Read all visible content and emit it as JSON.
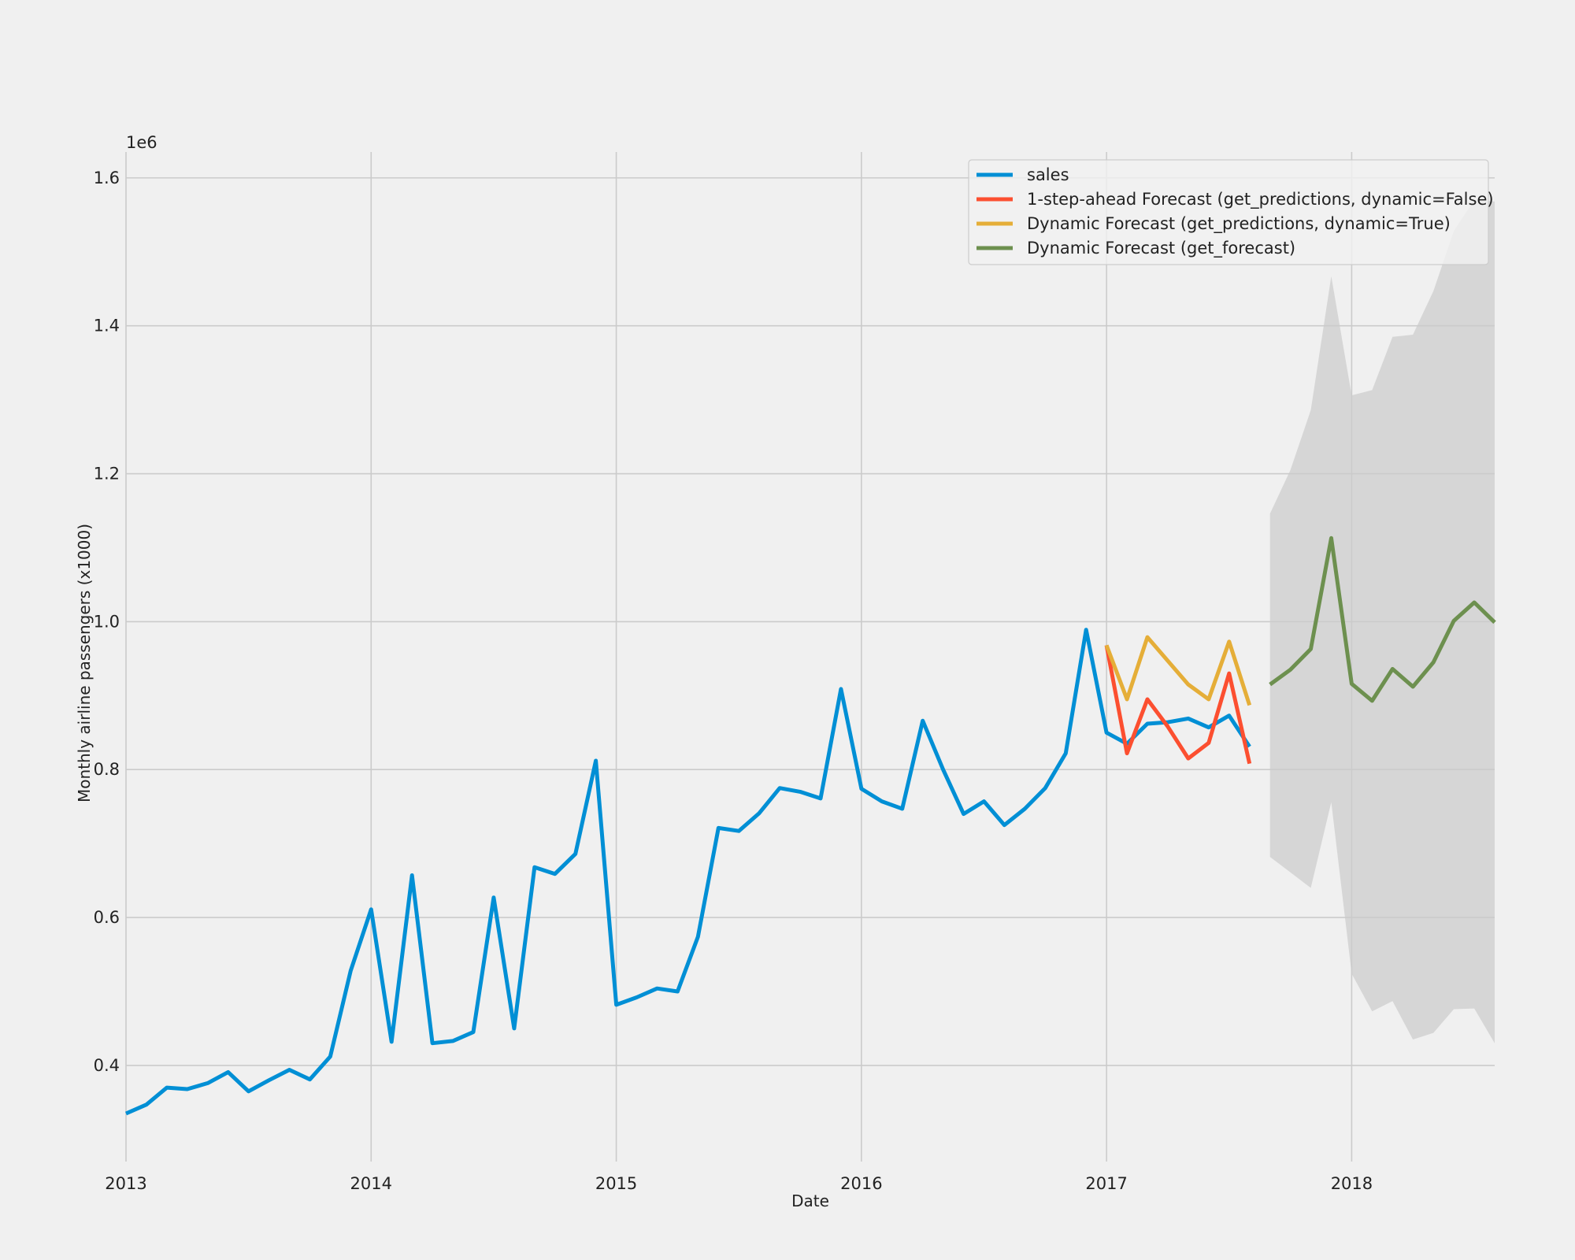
{
  "chart_data": {
    "type": "line",
    "title": "",
    "xlabel": "Date",
    "ylabel": "Monthly airline passengers (x1000)",
    "y_offset_text": "1e6",
    "xlim": [
      "2013-01",
      "2018-08"
    ],
    "ylim": [
      270000,
      1635000
    ],
    "x_ticks": [
      "2013",
      "2014",
      "2015",
      "2016",
      "2017",
      "2018"
    ],
    "y_ticks": [
      "0.4",
      "0.6",
      "0.8",
      "1.0",
      "1.2",
      "1.4",
      "1.6"
    ],
    "grid": true,
    "legend_position": "top-right",
    "colors": {
      "background": "#f0f0f0",
      "grid": "#cbcbcb",
      "band": "#d6d6d6"
    },
    "series": [
      {
        "name": "sales",
        "color": "#008fd5",
        "x": [
          "2013-01",
          "2013-02",
          "2013-03",
          "2013-04",
          "2013-05",
          "2013-06",
          "2013-07",
          "2013-08",
          "2013-09",
          "2013-10",
          "2013-11",
          "2013-12",
          "2014-01",
          "2014-02",
          "2014-03",
          "2014-04",
          "2014-05",
          "2014-06",
          "2014-07",
          "2014-08",
          "2014-09",
          "2014-10",
          "2014-11",
          "2014-12",
          "2015-01",
          "2015-02",
          "2015-03",
          "2015-04",
          "2015-05",
          "2015-06",
          "2015-07",
          "2015-08",
          "2015-09",
          "2015-10",
          "2015-11",
          "2015-12",
          "2016-01",
          "2016-02",
          "2016-03",
          "2016-04",
          "2016-05",
          "2016-06",
          "2016-07",
          "2016-08",
          "2016-09",
          "2016-10",
          "2016-11",
          "2016-12",
          "2017-01",
          "2017-02",
          "2017-03",
          "2017-04",
          "2017-05",
          "2017-06",
          "2017-07",
          "2017-08"
        ],
        "y": [
          335000,
          347000,
          370000,
          368000,
          376000,
          391000,
          365000,
          380000,
          394000,
          381000,
          412000,
          528000,
          611000,
          432000,
          657000,
          430000,
          433000,
          445000,
          627000,
          450000,
          668000,
          659000,
          686000,
          812000,
          482000,
          492000,
          504000,
          500000,
          574000,
          721000,
          717000,
          741000,
          775000,
          770000,
          761000,
          909000,
          774000,
          757000,
          747000,
          866000,
          800000,
          740000,
          757000,
          725000,
          747000,
          775000,
          822000,
          989000,
          850000,
          835000,
          862000,
          864000,
          869000,
          857000,
          873000,
          831000
        ]
      },
      {
        "name": "1-step-ahead Forecast (get_predictions, dynamic=False)",
        "color": "#fc4f30",
        "x": [
          "2017-01",
          "2017-02",
          "2017-03",
          "2017-04",
          "2017-05",
          "2017-06",
          "2017-07",
          "2017-08"
        ],
        "y": [
          968000,
          822000,
          895000,
          858000,
          815000,
          836000,
          930000,
          808000
        ]
      },
      {
        "name": "Dynamic Forecast (get_predictions, dynamic=True)",
        "color": "#e5ae38",
        "x": [
          "2017-01",
          "2017-02",
          "2017-03",
          "2017-04",
          "2017-05",
          "2017-06",
          "2017-07",
          "2017-08"
        ],
        "y": [
          968000,
          895000,
          979000,
          947000,
          915000,
          895000,
          973000,
          887000
        ]
      },
      {
        "name": "Dynamic Forecast (get_forecast)",
        "color": "#6d904f",
        "x": [
          "2017-09",
          "2017-10",
          "2017-11",
          "2017-12",
          "2018-01",
          "2018-02",
          "2018-03",
          "2018-04",
          "2018-05",
          "2018-06",
          "2018-07",
          "2018-08"
        ],
        "y": [
          915000,
          935000,
          963000,
          1113000,
          916000,
          893000,
          936000,
          912000,
          945000,
          1001000,
          1026000,
          999000
        ]
      }
    ],
    "confidence_band": {
      "x": [
        "2017-09",
        "2017-10",
        "2017-11",
        "2017-12",
        "2018-01",
        "2018-02",
        "2018-03",
        "2018-04",
        "2018-05",
        "2018-06",
        "2018-07",
        "2018-08"
      ],
      "lower": [
        682000,
        661000,
        640000,
        756000,
        524000,
        473000,
        487000,
        435000,
        444000,
        476000,
        477000,
        430000
      ],
      "upper": [
        1146000,
        1205000,
        1286000,
        1467000,
        1306000,
        1313000,
        1385000,
        1388000,
        1447000,
        1528000,
        1570000,
        1568000
      ]
    }
  }
}
